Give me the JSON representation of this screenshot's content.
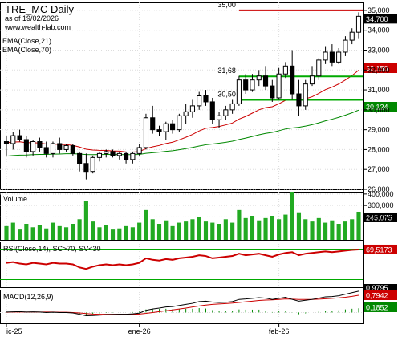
{
  "header": {
    "title": "TRE_MC Daily",
    "date_line": "as of 19/02/2026",
    "website": "www.wealth-lab.com"
  },
  "colors": {
    "candle_up": "#ffffff",
    "candle_down": "#000000",
    "ema21": "#cc0000",
    "ema70": "#008800",
    "hline_red": "#cc0000",
    "hline_green": "#00aa00",
    "volume_bar": "#22aa22",
    "rsi_line": "#cc0000",
    "rsi_band": "#00aa00",
    "macd_line": "#000000",
    "signal_line": "#cc0000",
    "hist": "#008800",
    "grid": "#dddddd"
  },
  "chart_data": [
    {
      "type": "candlestick",
      "pane": "price",
      "title": "TRE_MC Daily",
      "ylim": [
        26000,
        35400
      ],
      "yticks": [
        "35,000",
        "34,000",
        "33,000",
        "32,000",
        "31,000",
        "30,000",
        "29,000",
        "28,000",
        "27,000",
        "26,000"
      ],
      "ytick_values": [
        35000,
        34000,
        33000,
        32000,
        31000,
        30000,
        29000,
        28000,
        27000,
        26000
      ],
      "xticks": [
        {
          "label": "ic-25",
          "i": 0
        },
        {
          "label": "ene-26",
          "i": 20
        },
        {
          "label": "feb-26",
          "i": 41
        }
      ],
      "legend": [
        "EMA(Close,21)",
        "EMA(Close,70)"
      ],
      "last_labels": {
        "close": "34,700",
        "ema21": "32,150",
        "ema70": "30,124"
      },
      "levels": [
        {
          "label": "35,00",
          "value": 35000,
          "color": "red",
          "from_i": 35
        },
        {
          "label": "31,68",
          "value": 31680,
          "color": "green",
          "from_i": 35
        },
        {
          "label": "30,50",
          "value": 30500,
          "color": "green",
          "from_i": 35
        }
      ],
      "ohlc": [
        [
          28400,
          28700,
          27700,
          28300
        ],
        [
          28300,
          28900,
          28000,
          28700
        ],
        [
          28700,
          29000,
          28400,
          28500
        ],
        [
          28500,
          28700,
          27600,
          27900
        ],
        [
          27900,
          28500,
          27700,
          28400
        ],
        [
          28400,
          28600,
          27900,
          28100
        ],
        [
          28100,
          28400,
          27600,
          27800
        ],
        [
          27800,
          28400,
          27600,
          28300
        ],
        [
          28300,
          28600,
          27800,
          28000
        ],
        [
          28000,
          28300,
          27900,
          28200
        ],
        [
          28200,
          28300,
          27700,
          27800
        ],
        [
          27800,
          27900,
          26900,
          27300
        ],
        [
          27300,
          27800,
          26500,
          26900
        ],
        [
          26900,
          27700,
          26800,
          27600
        ],
        [
          27600,
          27900,
          27400,
          27800
        ],
        [
          27800,
          28000,
          27600,
          27900
        ],
        [
          27900,
          28000,
          27600,
          27700
        ],
        [
          27700,
          27900,
          27500,
          27800
        ],
        [
          27800,
          27900,
          27300,
          27500
        ],
        [
          27500,
          27900,
          27300,
          27800
        ],
        [
          27800,
          28300,
          27700,
          28100
        ],
        [
          28100,
          29800,
          28000,
          29600
        ],
        [
          29600,
          30200,
          28800,
          29000
        ],
        [
          29000,
          29200,
          28700,
          28900
        ],
        [
          28900,
          29400,
          28500,
          29300
        ],
        [
          29300,
          29500,
          28800,
          29000
        ],
        [
          29000,
          29800,
          28900,
          29700
        ],
        [
          29700,
          30300,
          29300,
          29900
        ],
        [
          29900,
          30500,
          29600,
          30200
        ],
        [
          30200,
          30900,
          30000,
          30700
        ],
        [
          30700,
          31000,
          30200,
          30400
        ],
        [
          30400,
          30600,
          29300,
          29500
        ],
        [
          29500,
          29900,
          29100,
          29700
        ],
        [
          29700,
          30200,
          29500,
          30000
        ],
        [
          30000,
          30500,
          29800,
          30300
        ],
        [
          30300,
          31700,
          30200,
          31500
        ],
        [
          31500,
          31800,
          30800,
          31000
        ],
        [
          31000,
          31800,
          30900,
          31500
        ],
        [
          31500,
          32000,
          31200,
          31700
        ],
        [
          31700,
          32200,
          31000,
          31200
        ],
        [
          31200,
          31500,
          30400,
          30600
        ],
        [
          30600,
          32100,
          30500,
          31800
        ],
        [
          31800,
          32400,
          31600,
          32200
        ],
        [
          32200,
          33000,
          30500,
          30800
        ],
        [
          30800,
          31500,
          29700,
          30200
        ],
        [
          30200,
          31500,
          30000,
          31300
        ],
        [
          31300,
          32200,
          31200,
          31700
        ],
        [
          31700,
          32600,
          31500,
          32500
        ],
        [
          32500,
          33200,
          32300,
          32900
        ],
        [
          32900,
          33300,
          32200,
          32400
        ],
        [
          32400,
          33100,
          32300,
          32900
        ],
        [
          32900,
          33700,
          32700,
          33500
        ],
        [
          33500,
          34100,
          33300,
          33900
        ],
        [
          33900,
          34900,
          33600,
          34700
        ]
      ],
      "ema21_start": 28350,
      "ema70_start": 27650
    },
    {
      "type": "bar",
      "pane": "volume",
      "title": "Volume",
      "ylim": [
        0,
        420000
      ],
      "yticks": [
        "400,000",
        "300,000",
        "200,000"
      ],
      "ytick_values": [
        400000,
        300000,
        200000
      ],
      "last_label": "245,075",
      "values": [
        120000,
        150000,
        90000,
        140000,
        110000,
        130000,
        100000,
        150000,
        120000,
        110000,
        140000,
        180000,
        340000,
        160000,
        110000,
        130000,
        90000,
        100000,
        120000,
        110000,
        150000,
        260000,
        180000,
        140000,
        170000,
        120000,
        150000,
        160000,
        180000,
        200000,
        160000,
        150000,
        140000,
        180000,
        150000,
        260000,
        190000,
        210000,
        170000,
        190000,
        210000,
        180000,
        220000,
        420000,
        240000,
        180000,
        160000,
        190000,
        150000,
        170000,
        140000,
        160000,
        180000,
        245075
      ]
    },
    {
      "type": "line",
      "pane": "rsi",
      "title": "RSI(Close,14), SC>70, SV<30",
      "ylim": [
        20,
        80
      ],
      "bands": [
        70,
        30
      ],
      "last_label": "69,5173",
      "values": [
        52,
        53,
        51,
        50,
        52,
        51,
        50,
        52,
        51,
        51,
        50,
        46,
        44,
        47,
        49,
        50,
        49,
        50,
        49,
        50,
        52,
        58,
        56,
        55,
        57,
        56,
        58,
        59,
        60,
        62,
        61,
        58,
        59,
        60,
        61,
        64,
        62,
        63,
        64,
        62,
        60,
        63,
        65,
        66,
        62,
        64,
        65,
        66,
        67,
        66,
        67,
        68,
        69,
        69.5
      ]
    },
    {
      "type": "line",
      "pane": "macd",
      "title": "MACD(12,26,9)",
      "ylim": [
        -0.5,
        1.05
      ],
      "last_labels": {
        "macd": "0,9795",
        "signal": "0,7942",
        "hist": "0,1852"
      },
      "macd": [
        0.02,
        0.03,
        0.04,
        0.02,
        0.03,
        0.02,
        0.0,
        0.01,
        0.0,
        0.0,
        -0.02,
        -0.08,
        -0.15,
        -0.14,
        -0.12,
        -0.1,
        -0.09,
        -0.08,
        -0.08,
        -0.06,
        -0.03,
        0.1,
        0.16,
        0.2,
        0.25,
        0.27,
        0.32,
        0.37,
        0.42,
        0.5,
        0.52,
        0.48,
        0.46,
        0.47,
        0.5,
        0.6,
        0.62,
        0.65,
        0.68,
        0.66,
        0.6,
        0.65,
        0.7,
        0.6,
        0.52,
        0.56,
        0.6,
        0.66,
        0.72,
        0.73,
        0.77,
        0.84,
        0.91,
        0.98
      ],
      "signal": [
        0.01,
        0.02,
        0.02,
        0.02,
        0.02,
        0.02,
        0.02,
        0.02,
        0.01,
        0.01,
        0.0,
        -0.02,
        -0.05,
        -0.07,
        -0.08,
        -0.08,
        -0.08,
        -0.08,
        -0.08,
        -0.08,
        -0.07,
        -0.04,
        0.0,
        0.04,
        0.08,
        0.12,
        0.16,
        0.2,
        0.25,
        0.3,
        0.34,
        0.37,
        0.39,
        0.41,
        0.43,
        0.46,
        0.49,
        0.52,
        0.55,
        0.57,
        0.58,
        0.6,
        0.62,
        0.61,
        0.6,
        0.6,
        0.6,
        0.61,
        0.63,
        0.65,
        0.67,
        0.7,
        0.74,
        0.79
      ]
    }
  ]
}
